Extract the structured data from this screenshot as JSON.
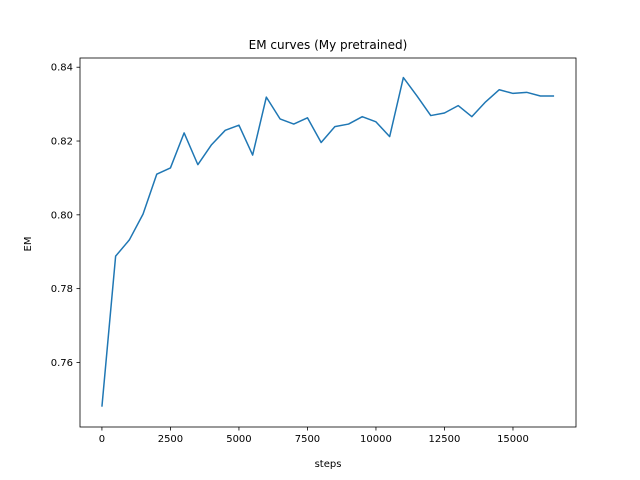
{
  "chart_data": {
    "type": "line",
    "title": "EM curves (My pretrained)",
    "xlabel": "steps",
    "ylabel": "EM",
    "xlim": [
      -800,
      17300
    ],
    "ylim": [
      0.7425,
      0.8425
    ],
    "xticks": [
      0,
      2500,
      5000,
      7500,
      10000,
      12500,
      15000
    ],
    "xtick_labels": [
      "0",
      "2500",
      "5000",
      "7500",
      "10000",
      "12500",
      "15000"
    ],
    "yticks": [
      0.76,
      0.78,
      0.8,
      0.82,
      0.84
    ],
    "ytick_labels": [
      "0.76",
      "0.78",
      "0.80",
      "0.82",
      "0.84"
    ],
    "grid": false,
    "color": "#1f77b4",
    "series": [
      {
        "x": [
          0,
          500,
          1000,
          1500,
          2000,
          2500,
          3000,
          3500,
          4000,
          4500,
          5000,
          5500,
          6000,
          6500,
          7000,
          7500,
          8000,
          8500,
          9000,
          9500,
          10000,
          10500,
          11000,
          11500,
          12000,
          12500,
          13000,
          13500,
          14000,
          14500,
          15000,
          15500,
          16000,
          16500
        ],
        "y": [
          0.748,
          0.7888,
          0.7932,
          0.8002,
          0.811,
          0.8127,
          0.8222,
          0.8136,
          0.819,
          0.8229,
          0.8243,
          0.8162,
          0.8319,
          0.826,
          0.8246,
          0.8263,
          0.8196,
          0.8239,
          0.8246,
          0.8266,
          0.8252,
          0.8212,
          0.8372,
          0.8322,
          0.8269,
          0.8276,
          0.8296,
          0.8266,
          0.8306,
          0.8339,
          0.8329,
          0.8332,
          0.8322,
          0.8322
        ]
      }
    ]
  }
}
